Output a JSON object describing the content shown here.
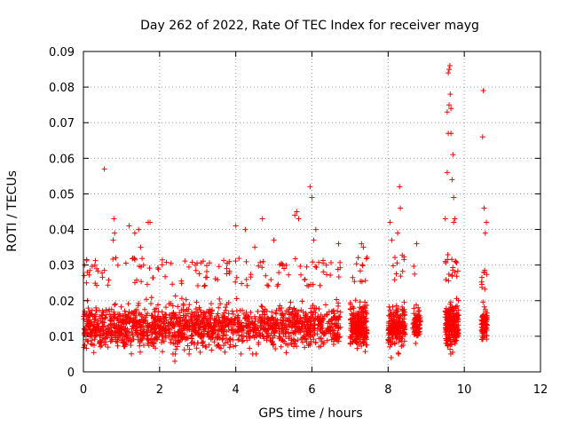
{
  "chart_data": {
    "type": "scatter",
    "title": "Day 262 of 2022, Rate Of TEC Index for receiver mayg",
    "xlabel": "GPS time / hours",
    "ylabel": "ROTI / TECUs",
    "xlim": [
      0,
      12
    ],
    "ylim": [
      0,
      0.09
    ],
    "xticks": [
      0,
      2,
      4,
      6,
      8,
      10,
      12
    ],
    "yticks": [
      0,
      0.01,
      0.02,
      0.03,
      0.04,
      0.05,
      0.06,
      0.07,
      0.08,
      0.09
    ],
    "xtick_labels": [
      "0",
      "2",
      "4",
      "6",
      "8",
      "10",
      "12"
    ],
    "ytick_labels": [
      "0",
      "0.01",
      "0.02",
      "0.03",
      "0.04",
      "0.05",
      "0.06",
      "0.07",
      "0.08",
      "0.09"
    ],
    "grid": true,
    "marker": "+",
    "color": "#ff0000",
    "series": [
      {
        "name": "ROTI",
        "clusters": [
          {
            "x_start": 0.0,
            "x_end": 6.75,
            "y_low": 0.006,
            "y_high": 0.024,
            "count": 1700
          },
          {
            "x_start": 7.0,
            "x_end": 7.45,
            "y_low": 0.006,
            "y_high": 0.025,
            "count": 260
          },
          {
            "x_start": 8.0,
            "x_end": 8.45,
            "y_low": 0.006,
            "y_high": 0.025,
            "count": 200
          },
          {
            "x_start": 8.65,
            "x_end": 8.85,
            "y_low": 0.009,
            "y_high": 0.022,
            "count": 80
          },
          {
            "x_start": 9.5,
            "x_end": 9.85,
            "y_low": 0.006,
            "y_high": 0.025,
            "count": 240
          },
          {
            "x_start": 10.45,
            "x_end": 10.6,
            "y_low": 0.008,
            "y_high": 0.022,
            "count": 90
          }
        ],
        "points": [
          {
            "x": 0.55,
            "y": 0.057
          },
          {
            "x": 0.8,
            "y": 0.043
          },
          {
            "x": 0.82,
            "y": 0.039
          },
          {
            "x": 0.78,
            "y": 0.037
          },
          {
            "x": 0.85,
            "y": 0.032
          },
          {
            "x": 1.2,
            "y": 0.041
          },
          {
            "x": 1.35,
            "y": 0.039
          },
          {
            "x": 1.45,
            "y": 0.04
          },
          {
            "x": 1.5,
            "y": 0.035
          },
          {
            "x": 1.7,
            "y": 0.042
          },
          {
            "x": 1.75,
            "y": 0.042
          },
          {
            "x": 0.3,
            "y": 0.03
          },
          {
            "x": 0.35,
            "y": 0.029
          },
          {
            "x": 0.1,
            "y": 0.028
          },
          {
            "x": 2.35,
            "y": 0.005
          },
          {
            "x": 2.4,
            "y": 0.003
          },
          {
            "x": 4.0,
            "y": 0.041
          },
          {
            "x": 4.25,
            "y": 0.04
          },
          {
            "x": 4.7,
            "y": 0.043
          },
          {
            "x": 5.6,
            "y": 0.045
          },
          {
            "x": 5.65,
            "y": 0.043
          },
          {
            "x": 5.55,
            "y": 0.044
          },
          {
            "x": 5.95,
            "y": 0.052
          },
          {
            "x": 6.0,
            "y": 0.049
          },
          {
            "x": 6.1,
            "y": 0.04
          },
          {
            "x": 6.05,
            "y": 0.037
          },
          {
            "x": 6.7,
            "y": 0.036
          },
          {
            "x": 5.0,
            "y": 0.037
          },
          {
            "x": 4.5,
            "y": 0.035
          },
          {
            "x": 7.3,
            "y": 0.036
          },
          {
            "x": 7.35,
            "y": 0.035
          },
          {
            "x": 8.05,
            "y": 0.042
          },
          {
            "x": 8.1,
            "y": 0.037
          },
          {
            "x": 8.08,
            "y": 0.004
          },
          {
            "x": 8.3,
            "y": 0.052
          },
          {
            "x": 8.32,
            "y": 0.046
          },
          {
            "x": 8.25,
            "y": 0.039
          },
          {
            "x": 8.75,
            "y": 0.036
          },
          {
            "x": 9.6,
            "y": 0.085
          },
          {
            "x": 9.62,
            "y": 0.086
          },
          {
            "x": 9.58,
            "y": 0.084
          },
          {
            "x": 9.63,
            "y": 0.078
          },
          {
            "x": 9.6,
            "y": 0.075
          },
          {
            "x": 9.65,
            "y": 0.074
          },
          {
            "x": 9.55,
            "y": 0.073
          },
          {
            "x": 9.58,
            "y": 0.067
          },
          {
            "x": 9.65,
            "y": 0.067
          },
          {
            "x": 9.7,
            "y": 0.061
          },
          {
            "x": 9.55,
            "y": 0.056
          },
          {
            "x": 9.68,
            "y": 0.054
          },
          {
            "x": 9.72,
            "y": 0.049
          },
          {
            "x": 9.75,
            "y": 0.043
          },
          {
            "x": 9.72,
            "y": 0.042
          },
          {
            "x": 9.5,
            "y": 0.043
          },
          {
            "x": 10.5,
            "y": 0.079
          },
          {
            "x": 10.48,
            "y": 0.066
          },
          {
            "x": 10.52,
            "y": 0.046
          },
          {
            "x": 10.58,
            "y": 0.042
          },
          {
            "x": 10.55,
            "y": 0.039
          }
        ]
      }
    ]
  }
}
